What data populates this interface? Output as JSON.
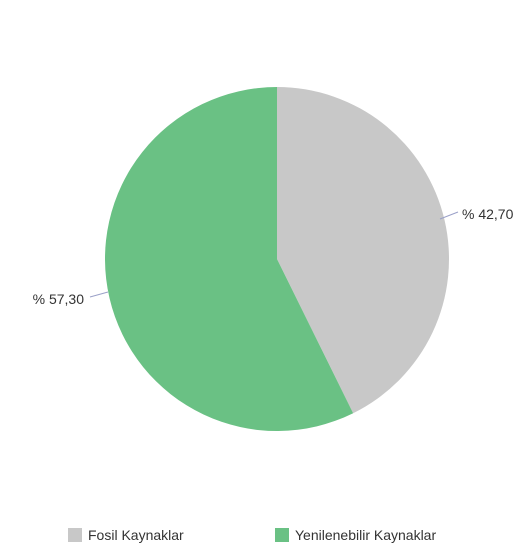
{
  "chart_data": {
    "type": "pie",
    "title": "",
    "start_angle_deg": 0,
    "direction": "clockwise",
    "slices": [
      {
        "label": "Fosil Kaynaklar",
        "value": 42.7,
        "value_text": "% 42,70",
        "color": "#c8c8c8"
      },
      {
        "label": "Yenilenebilir Kaynaklar",
        "value": 57.3,
        "value_text": "% 57,30",
        "color": "#6ac184"
      }
    ],
    "legend": {
      "position": "bottom",
      "items": [
        "Fosil Kaynaklar",
        "Yenilenebilir Kaynaklar"
      ]
    }
  }
}
